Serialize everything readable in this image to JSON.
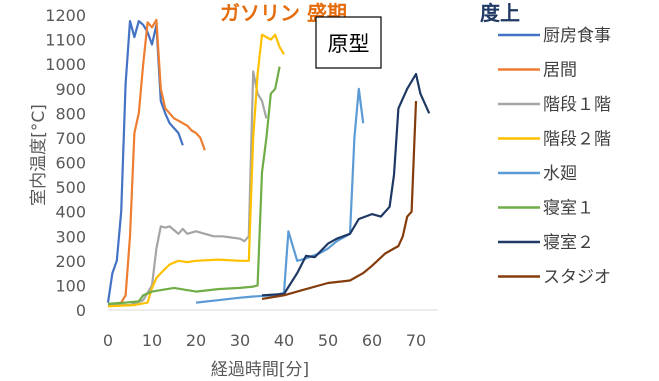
{
  "chart_data": {
    "type": "line",
    "title_fragments": [
      {
        "text": "ガソリン 盛期",
        "color": "#e46c0a"
      },
      {
        "text": "度上",
        "color": "#1f3864"
      }
    ],
    "xlabel": "経過時間[分]",
    "ylabel": "室内温度[°C]",
    "xlim": [
      0,
      75
    ],
    "ylim": [
      0,
      1200
    ],
    "xticks": [
      "0",
      "10",
      "20",
      "30",
      "40",
      "50",
      "60",
      "70"
    ],
    "yticks": [
      "0",
      "100",
      "200",
      "300",
      "400",
      "500",
      "600",
      "700",
      "800",
      "900",
      "1000",
      "1100",
      "1200"
    ],
    "annotation": "原型",
    "legend_position": "right",
    "series": [
      {
        "name": "厨房食事",
        "color": "#4472c4",
        "points": [
          [
            0,
            30
          ],
          [
            1,
            150
          ],
          [
            2,
            200
          ],
          [
            3,
            400
          ],
          [
            4,
            920
          ],
          [
            5,
            1175
          ],
          [
            6,
            1110
          ],
          [
            7,
            1175
          ],
          [
            8,
            1160
          ],
          [
            9,
            1130
          ],
          [
            10,
            1080
          ],
          [
            11,
            1160
          ],
          [
            12,
            850
          ],
          [
            13,
            800
          ],
          [
            14,
            760
          ],
          [
            15,
            740
          ],
          [
            16,
            720
          ],
          [
            17,
            670
          ]
        ]
      },
      {
        "name": "居間",
        "color": "#ed7d31",
        "points": [
          [
            0,
            20
          ],
          [
            3,
            30
          ],
          [
            4,
            60
          ],
          [
            5,
            300
          ],
          [
            6,
            720
          ],
          [
            7,
            800
          ],
          [
            8,
            1000
          ],
          [
            9,
            1170
          ],
          [
            10,
            1150
          ],
          [
            11,
            1180
          ],
          [
            12,
            900
          ],
          [
            13,
            820
          ],
          [
            14,
            800
          ],
          [
            15,
            780
          ],
          [
            16,
            770
          ],
          [
            17,
            760
          ],
          [
            18,
            750
          ],
          [
            19,
            730
          ],
          [
            20,
            720
          ],
          [
            21,
            700
          ],
          [
            22,
            650
          ]
        ]
      },
      {
        "name": "階段１階",
        "color": "#a5a5a5",
        "points": [
          [
            0,
            20
          ],
          [
            5,
            20
          ],
          [
            8,
            40
          ],
          [
            10,
            100
          ],
          [
            11,
            250
          ],
          [
            12,
            340
          ],
          [
            13,
            335
          ],
          [
            14,
            340
          ],
          [
            15,
            325
          ],
          [
            16,
            310
          ],
          [
            17,
            330
          ],
          [
            18,
            310
          ],
          [
            20,
            320
          ],
          [
            22,
            310
          ],
          [
            24,
            300
          ],
          [
            26,
            300
          ],
          [
            28,
            295
          ],
          [
            30,
            290
          ],
          [
            31,
            280
          ],
          [
            32,
            300
          ],
          [
            33,
            970
          ],
          [
            34,
            880
          ],
          [
            35,
            850
          ],
          [
            36,
            780
          ]
        ]
      },
      {
        "name": "階段２階",
        "color": "#ffc000",
        "points": [
          [
            0,
            15
          ],
          [
            6,
            20
          ],
          [
            9,
            30
          ],
          [
            10,
            90
          ],
          [
            11,
            130
          ],
          [
            12,
            150
          ],
          [
            14,
            185
          ],
          [
            16,
            200
          ],
          [
            18,
            195
          ],
          [
            20,
            200
          ],
          [
            25,
            205
          ],
          [
            30,
            200
          ],
          [
            32,
            200
          ],
          [
            33,
            700
          ],
          [
            34,
            960
          ],
          [
            35,
            1120
          ],
          [
            36,
            1110
          ],
          [
            37,
            1100
          ],
          [
            38,
            1120
          ],
          [
            39,
            1070
          ],
          [
            40,
            1040
          ]
        ]
      },
      {
        "name": "水廻",
        "color": "#5b9bd5",
        "points": [
          [
            20,
            30
          ],
          [
            25,
            40
          ],
          [
            30,
            50
          ],
          [
            33,
            55
          ],
          [
            38,
            60
          ],
          [
            40,
            70
          ],
          [
            41,
            320
          ],
          [
            42,
            260
          ],
          [
            43,
            200
          ],
          [
            45,
            210
          ],
          [
            48,
            230
          ],
          [
            50,
            250
          ],
          [
            52,
            280
          ],
          [
            54,
            300
          ],
          [
            55,
            310
          ],
          [
            56,
            700
          ],
          [
            57,
            900
          ],
          [
            58,
            760
          ]
        ]
      },
      {
        "name": "寝室１",
        "color": "#70ad47",
        "points": [
          [
            0,
            25
          ],
          [
            4,
            30
          ],
          [
            7,
            35
          ],
          [
            8,
            60
          ],
          [
            10,
            75
          ],
          [
            15,
            90
          ],
          [
            20,
            75
          ],
          [
            25,
            85
          ],
          [
            30,
            90
          ],
          [
            33,
            95
          ],
          [
            34,
            100
          ],
          [
            35,
            560
          ],
          [
            36,
            700
          ],
          [
            37,
            880
          ],
          [
            38,
            900
          ],
          [
            39,
            990
          ]
        ]
      },
      {
        "name": "寝室２",
        "color": "#1f3864",
        "points": [
          [
            35,
            60
          ],
          [
            40,
            65
          ],
          [
            43,
            150
          ],
          [
            45,
            220
          ],
          [
            47,
            215
          ],
          [
            50,
            270
          ],
          [
            52,
            290
          ],
          [
            55,
            310
          ],
          [
            57,
            370
          ],
          [
            60,
            390
          ],
          [
            62,
            380
          ],
          [
            64,
            420
          ],
          [
            65,
            550
          ],
          [
            66,
            820
          ],
          [
            68,
            900
          ],
          [
            70,
            960
          ],
          [
            71,
            880
          ],
          [
            73,
            800
          ]
        ]
      },
      {
        "name": "スタジオ",
        "color": "#843c0c",
        "points": [
          [
            35,
            45
          ],
          [
            40,
            60
          ],
          [
            44,
            80
          ],
          [
            50,
            110
          ],
          [
            55,
            120
          ],
          [
            58,
            150
          ],
          [
            60,
            180
          ],
          [
            63,
            230
          ],
          [
            65,
            250
          ],
          [
            66,
            260
          ],
          [
            67,
            300
          ],
          [
            68,
            380
          ],
          [
            69,
            400
          ],
          [
            70,
            850
          ]
        ]
      }
    ]
  }
}
